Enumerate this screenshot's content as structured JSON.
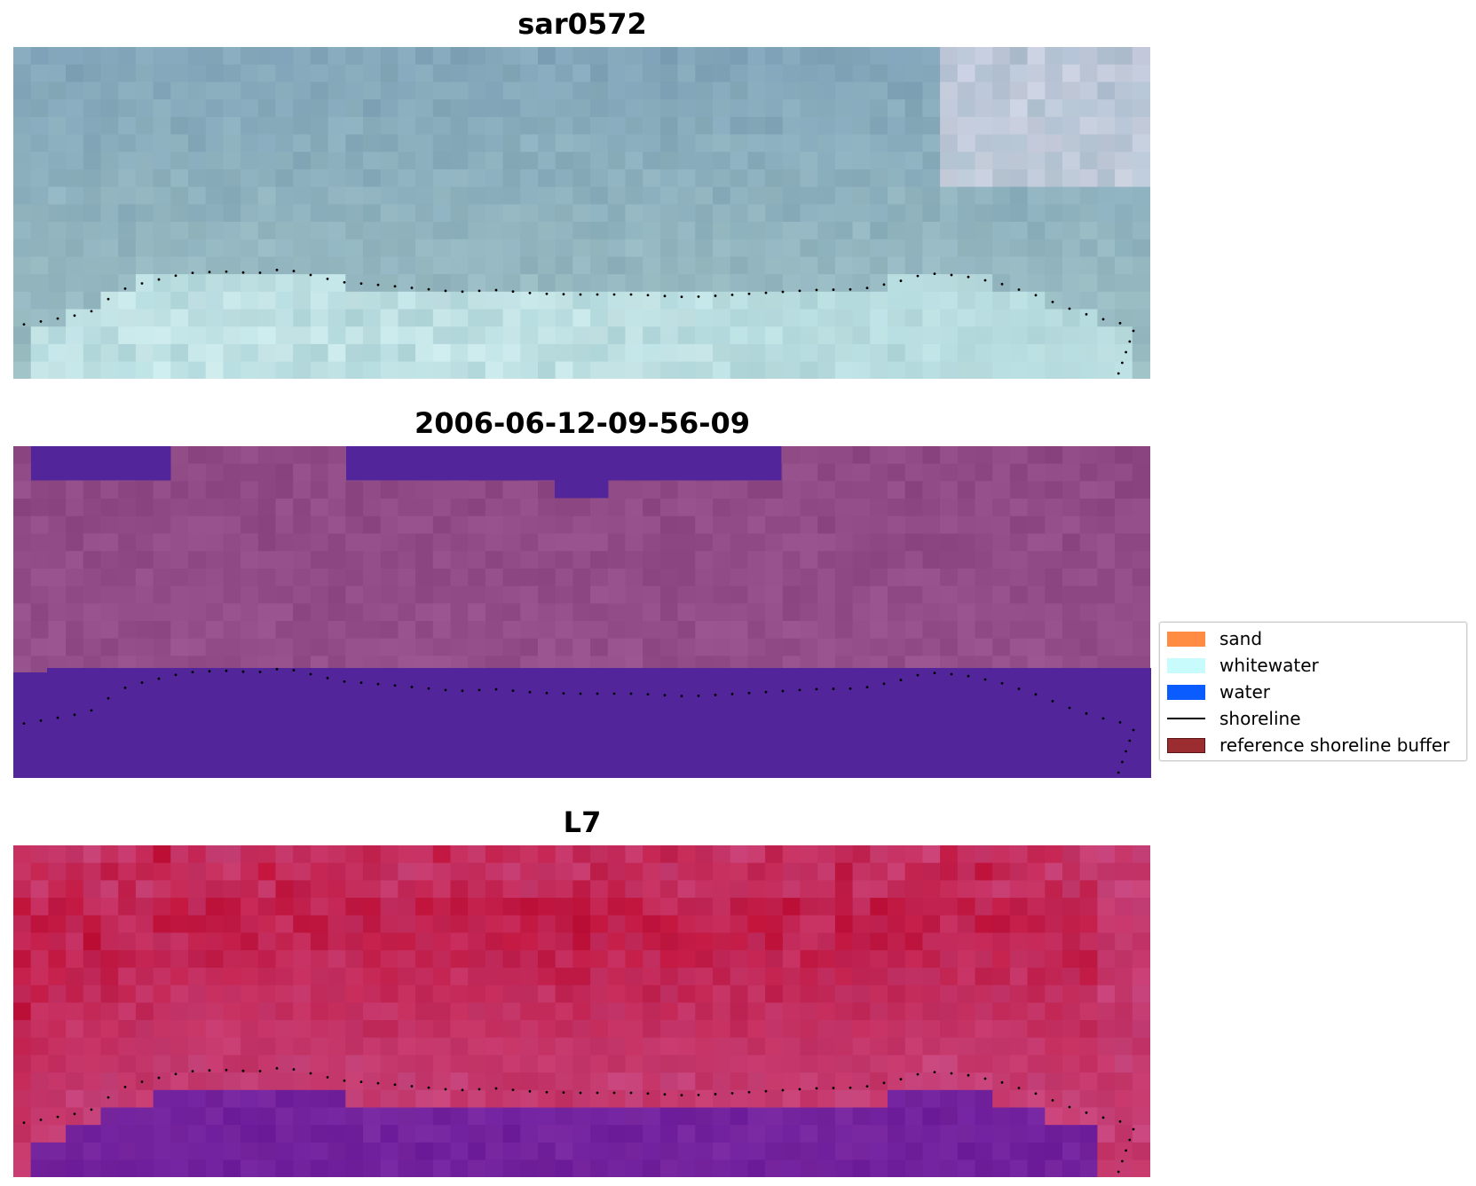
{
  "panels": [
    {
      "title": "sar0572",
      "style": "rgb"
    },
    {
      "title": "2006-06-12-09-56-09",
      "style": "classified"
    },
    {
      "title": "L7",
      "style": "index"
    }
  ],
  "legend": {
    "items": [
      {
        "label": "sand",
        "kind": "patch",
        "color": "#ff8c42"
      },
      {
        "label": "whitewater",
        "kind": "patch",
        "color": "#c8fbfb"
      },
      {
        "label": "water",
        "kind": "patch",
        "color": "#0a5cff"
      },
      {
        "label": "shoreline",
        "kind": "line",
        "color": "#000000"
      },
      {
        "label": "reference shoreline buffer",
        "kind": "patch",
        "color": "#9b2d30"
      }
    ]
  },
  "colors": {
    "rgb_water": "#7fa2b8",
    "rgb_white": "#dff7f6",
    "classified_bg": "#8f4a86",
    "classified_water": "#52259a",
    "index_red": "#c0163f",
    "index_purple": "#6b1a9c"
  }
}
